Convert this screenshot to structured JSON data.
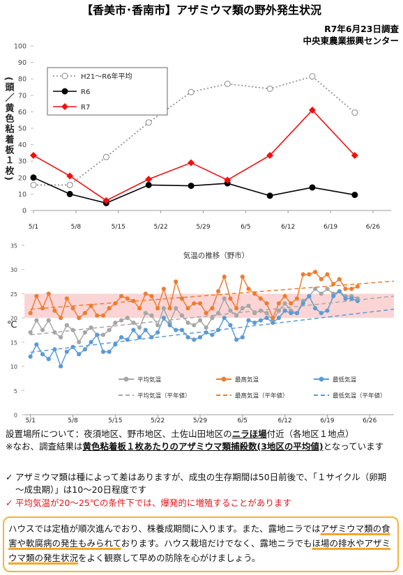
{
  "header": {
    "title": "【香美市･香南市】アザミウマ類の野外発生状況",
    "date": "R7年6月23日調査",
    "org": "中央東農業振興センター"
  },
  "chart_data": [
    {
      "type": "line",
      "y_label": "(頭／黄色粘着板１枚)",
      "xlim": [
        "5/1",
        "6/29"
      ],
      "xticks": [
        "5/1",
        "5/8",
        "5/15",
        "5/22",
        "5/29",
        "6/5",
        "6/12",
        "6/19",
        "6/26"
      ],
      "ylim": [
        0,
        100
      ],
      "yticks": [
        0,
        10,
        20,
        30,
        40,
        50,
        60,
        70,
        80,
        90,
        100
      ],
      "x": [
        "5/1",
        "5/7",
        "5/13",
        "5/20",
        "5/27",
        "6/2",
        "6/9",
        "6/16",
        "6/23"
      ],
      "series": [
        {
          "name": "H21～R6年平均",
          "color": "#888888",
          "marker": "circle-open",
          "dash": "dotted",
          "values": [
            15.5,
            15.5,
            32.5,
            53.5,
            72,
            77,
            74,
            81.5,
            59.5
          ]
        },
        {
          "name": "R6",
          "color": "#000000",
          "marker": "circle",
          "dash": null,
          "values": [
            20,
            10,
            4.5,
            15.5,
            15,
            16.5,
            9,
            14,
            9.5
          ]
        },
        {
          "name": "R7",
          "color": "#ee1111",
          "marker": "diamond",
          "dash": null,
          "values": [
            33.5,
            21,
            6,
            19,
            29,
            18.5,
            33.5,
            61,
            33.5
          ]
        }
      ]
    },
    {
      "type": "line",
      "title": "気温の推移（野市）",
      "y_label": "℃",
      "xlim": [
        "4/30",
        "6/30"
      ],
      "xticks": [
        "5/1",
        "5/8",
        "5/15",
        "5/22",
        "5/29",
        "6/5",
        "6/12",
        "6/19",
        "6/26"
      ],
      "ylim": [
        0,
        35
      ],
      "yticks": [
        0,
        5,
        10,
        15,
        20,
        25,
        30,
        35
      ],
      "band": {
        "range": [
          20,
          25
        ],
        "color": "#fbd5d5"
      },
      "x": [
        "5/1",
        "5/2",
        "5/3",
        "5/4",
        "5/5",
        "5/6",
        "5/7",
        "5/8",
        "5/9",
        "5/10",
        "5/11",
        "5/12",
        "5/13",
        "5/14",
        "5/15",
        "5/16",
        "5/17",
        "5/18",
        "5/19",
        "5/20",
        "5/21",
        "5/22",
        "5/23",
        "5/24",
        "5/25",
        "5/26",
        "5/27",
        "5/28",
        "5/29",
        "5/30",
        "5/31",
        "6/1",
        "6/2",
        "6/3",
        "6/4",
        "6/5",
        "6/6",
        "6/7",
        "6/8",
        "6/9",
        "6/10",
        "6/11",
        "6/12",
        "6/13",
        "6/14",
        "6/15",
        "6/16",
        "6/17",
        "6/18",
        "6/19",
        "6/20",
        "6/21",
        "6/22",
        "6/23",
        "6/24"
      ],
      "series": [
        {
          "name": "平均気温",
          "color": "#a6a6a6",
          "marker": "circle",
          "dash": null,
          "values": [
            17,
            19.5,
            17.5,
            19.5,
            17,
            16,
            18.5,
            17.5,
            15,
            17,
            18,
            16.5,
            16.5,
            17.5,
            19,
            19.5,
            20,
            19,
            18,
            21,
            20.5,
            18.5,
            22,
            19,
            22,
            20.5,
            19,
            18.5,
            19.5,
            18,
            20,
            21,
            24,
            21.5,
            20.5,
            22,
            22.5,
            21,
            21.5,
            21,
            19.5,
            21.5,
            23,
            21.5,
            21,
            23.5,
            24.5,
            26,
            25,
            26,
            25,
            25.5,
            24.5,
            24.5,
            24
          ]
        },
        {
          "name": "最高気温",
          "color": "#ed7d31",
          "marker": "circle",
          "dash": null,
          "values": [
            21,
            24.5,
            22,
            25,
            21.5,
            20,
            24,
            22,
            20,
            21,
            22.5,
            20.5,
            20.5,
            22,
            23,
            24.5,
            24,
            23.5,
            22,
            25,
            24.5,
            22,
            26,
            22,
            27.5,
            24,
            22,
            23,
            23,
            21,
            22,
            25.5,
            28.5,
            24,
            22,
            28.5,
            26,
            25,
            24,
            23,
            20,
            23,
            24.5,
            23,
            24,
            29,
            29,
            29.5,
            28,
            29,
            27,
            28,
            26,
            26,
            26.5
          ]
        },
        {
          "name": "最低気温",
          "color": "#5b9bd5",
          "marker": "circle",
          "dash": null,
          "values": [
            12,
            14.5,
            12.5,
            11.5,
            13.5,
            10,
            13,
            14,
            12.5,
            13.5,
            15,
            16.5,
            13,
            13,
            14.5,
            16,
            15.5,
            17.5,
            16,
            17.5,
            16,
            17,
            20,
            18.5,
            17.5,
            17.5,
            16,
            15.5,
            16,
            17,
            16.5,
            17.5,
            20,
            18.5,
            15.5,
            16,
            19.5,
            19,
            19.5,
            20,
            19,
            20,
            21.5,
            21,
            21,
            23,
            24.5,
            22,
            21,
            21.5,
            24.5,
            25.5,
            24,
            24,
            23.5
          ]
        },
        {
          "name": "平均気温（平年値）",
          "color": "#a6a6a6",
          "marker": null,
          "dash": "dashed",
          "x": [
            "5/1",
            "6/30"
          ],
          "values": [
            16.5,
            24.5
          ]
        },
        {
          "name": "最高気温（平年値）",
          "color": "#ed7d31",
          "marker": null,
          "dash": "dashed",
          "x": [
            "5/1",
            "6/30"
          ],
          "values": [
            21.8,
            27.6
          ]
        },
        {
          "name": "最低気温（平年値）",
          "color": "#5b9bd5",
          "marker": null,
          "dash": "dashed",
          "x": [
            "5/1",
            "6/30"
          ],
          "values": [
            12.9,
            21.8
          ]
        }
      ]
    }
  ],
  "notes": [
    [
      "設置場所について：夜須地区、野市地区、土佐山田地区の",
      "ニラほ場",
      "付近（各地区１地点）"
    ],
    [
      "※なお、調査結果は",
      "黄色粘着板１枚あたりのアザミウマ類捕殺数(3地区の平均値)",
      "となっています"
    ]
  ],
  "bullets": [
    "アザミウマ類は種によって差はありますが、成虫の生存期間は50日前後で、「１サイクル（卵期～成虫期）」は10～20日程度です",
    "平均気温が20～25℃の条件下では、爆発的に増殖することがあります"
  ],
  "box": [
    "ハウスでは定植が順次進んでおり、株養成期間に入ります。また、露地ニラでは",
    "アザミウマ類の食害や軟腐病の発生もみられて",
    "おります。ハウス栽培だけでなく、露地ニラでも",
    "ほ場の排水やアザミウマ類の発生状況",
    "をよく観察して早めの防除を心がけましょう。"
  ]
}
